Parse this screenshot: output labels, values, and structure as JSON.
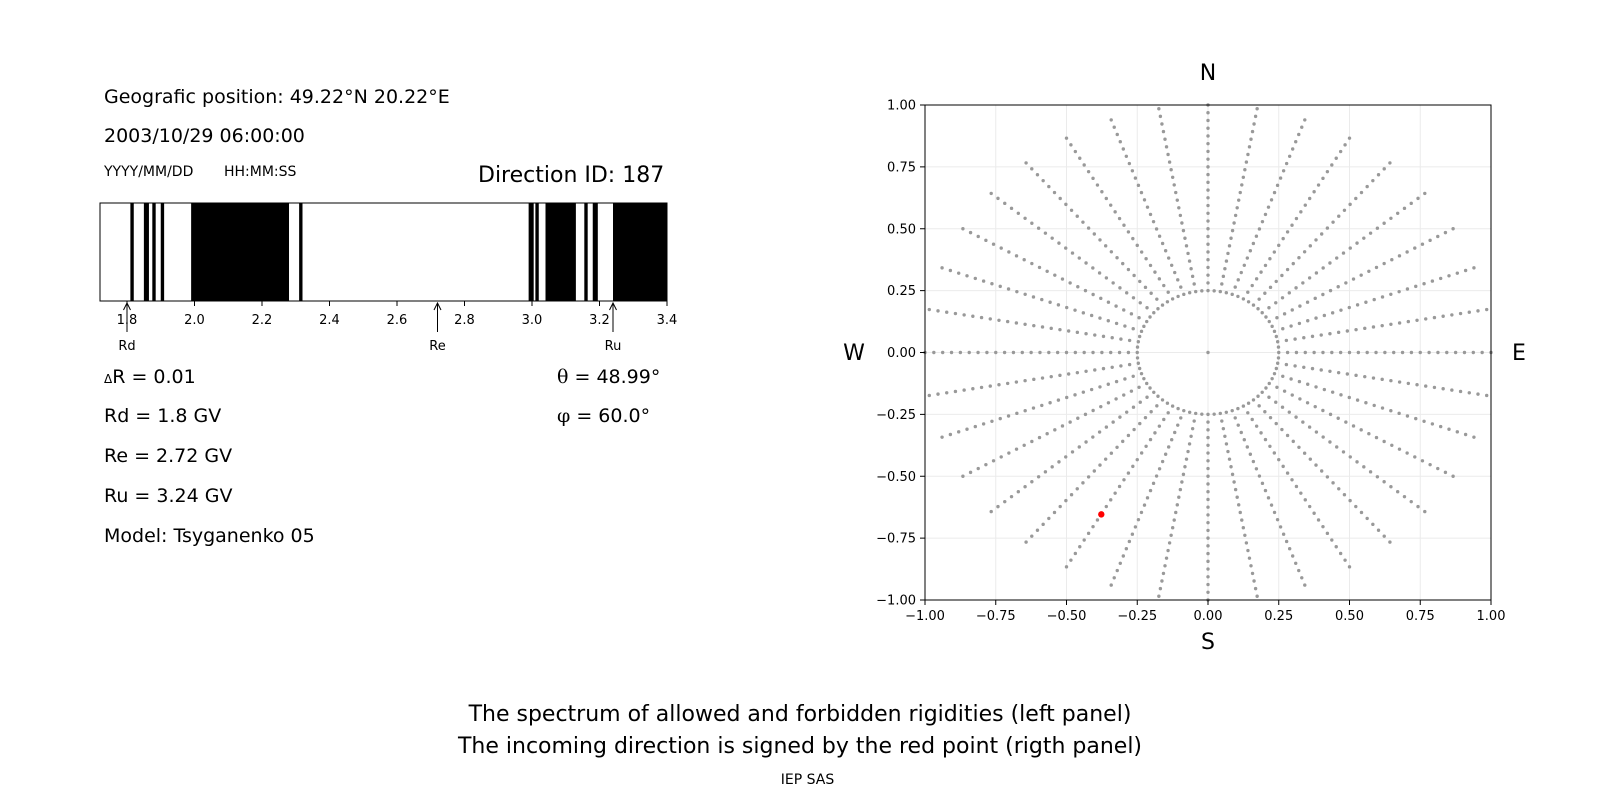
{
  "header": {
    "position": "Geografic position: 49.22°N 20.22°E",
    "datetime": "2003/10/29 06:00:00",
    "date_format": "YYYY/MM/DD",
    "time_format": "HH:MM:SS",
    "direction": "Direction ID: 187"
  },
  "params": {
    "delta_symbol": "Δ",
    "delta_r": "R = 0.01",
    "rd": "Rd = 1.8 GV",
    "re": "Re = 2.72 GV",
    "ru": "Ru = 3.24 GV",
    "model": "Model: Tsyganenko 05",
    "theta_symbol": "θ",
    "theta": " = 48.99°",
    "phi_symbol": "φ",
    "phi": " = 60.0°"
  },
  "compass": {
    "n": "N",
    "s": "S",
    "w": "W",
    "e": "E"
  },
  "caption": {
    "line1": "The spectrum of allowed and forbidden rigidities (left panel)",
    "line2": "The incoming direction is signed by the red point (rigth panel)",
    "credit": "IEP SAS"
  },
  "chart_data": [
    {
      "type": "bar",
      "xlim": [
        1.72,
        3.4
      ],
      "ticks": [
        "1.8",
        "2.0",
        "2.2",
        "2.4",
        "2.6",
        "2.8",
        "3.0",
        "3.2",
        "3.4"
      ],
      "forbidden_bands": [
        [
          1.81,
          1.82
        ],
        [
          1.85,
          1.865
        ],
        [
          1.875,
          1.885
        ],
        [
          1.9,
          1.91
        ],
        [
          1.99,
          2.28
        ],
        [
          2.31,
          2.32
        ],
        [
          2.99,
          3.005
        ],
        [
          3.01,
          3.02
        ],
        [
          3.04,
          3.13
        ],
        [
          3.155,
          3.165
        ],
        [
          3.18,
          3.195
        ],
        [
          3.24,
          3.4
        ]
      ],
      "markers": [
        {
          "label": "Rd",
          "value": 1.8
        },
        {
          "label": "Re",
          "value": 2.72
        },
        {
          "label": "Ru",
          "value": 3.24
        }
      ],
      "colors": {
        "forbidden": "#000000",
        "allowed": "#ffffff"
      }
    },
    {
      "type": "scatter",
      "xlim": [
        -1.0,
        1.0
      ],
      "ylim": [
        -1.0,
        1.0
      ],
      "xticks": [
        "−1.00",
        "−0.75",
        "−0.50",
        "−0.25",
        "0.00",
        "0.25",
        "0.50",
        "0.75",
        "1.00"
      ],
      "yticks": [
        "−1.00",
        "−0.75",
        "−0.50",
        "−0.25",
        "0.00",
        "0.25",
        "0.50",
        "0.75",
        "1.00"
      ],
      "grid": true,
      "grid_rays": 36,
      "grid_points_per_ray": 25,
      "grid_inner_radius": 0.25,
      "grid_inner_ring_points": 36,
      "grid_color": "#999999",
      "highlight": {
        "x": -0.377,
        "y": -0.654,
        "color": "#ff0000"
      }
    }
  ]
}
